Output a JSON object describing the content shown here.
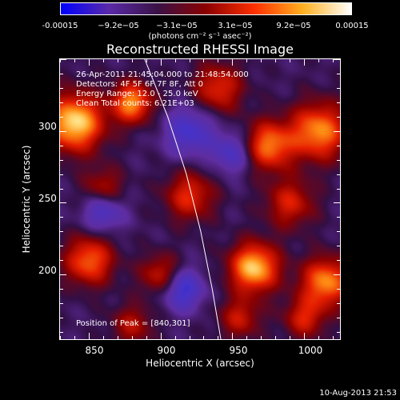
{
  "colorbar": {
    "ticks": [
      "-0.00015",
      "−9.2e−05",
      "−3.1e−05",
      "3.1e−05",
      "9.2e−05",
      "0.00015"
    ],
    "units": "(photons cm⁻² s⁻¹ asec⁻²)",
    "colors": [
      "#0000ff",
      "#5a2aa8",
      "#3a1246",
      "#8a0000",
      "#ff3000",
      "#ffb020",
      "#ffffff"
    ]
  },
  "chart_data": {
    "type": "heatmap",
    "title": "Reconstructed RHESSI Image",
    "xlabel": "Heliocentric X (arcsec)",
    "ylabel": "Heliocentric Y (arcsec)",
    "xlim": [
      830,
      1025
    ],
    "ylim": [
      155,
      350
    ],
    "xticks": [
      850,
      900,
      950,
      1000
    ],
    "yticks": [
      200,
      250,
      300
    ],
    "xtick_labels": [
      "850",
      "900",
      "950",
      "1000"
    ],
    "ytick_labels": [
      "200",
      "250",
      "300"
    ],
    "annotations": [
      "26-Apr-2011 21:45:04.000 to 21:48:54.000",
      "Detectors: 4F 5F 6F 7F 8F, Att 0",
      "Energy Range: 12.0 - 25.0 keV",
      "Clean    Total counts: 6.21E+03"
    ],
    "peak_label": "Position of Peak = [840,301]",
    "peak": [
      840,
      301
    ],
    "limb_points": [
      [
        889,
        350
      ],
      [
        905,
        310
      ],
      [
        918,
        270
      ],
      [
        928,
        230
      ],
      [
        936,
        190
      ],
      [
        942,
        155
      ]
    ],
    "blobs": [
      [
        840,
        306,
        14,
        1.0
      ],
      [
        880,
        320,
        10,
        0.8
      ],
      [
        975,
        290,
        12,
        0.75
      ],
      [
        1010,
        300,
        14,
        0.8
      ],
      [
        965,
        205,
        12,
        0.95
      ],
      [
        1015,
        195,
        12,
        0.8
      ],
      [
        850,
        210,
        12,
        0.7
      ],
      [
        920,
        255,
        12,
        0.55
      ],
      [
        900,
        200,
        10,
        0.5
      ],
      [
        990,
        250,
        12,
        0.5
      ],
      [
        940,
        330,
        12,
        0.55
      ],
      [
        860,
        260,
        10,
        0.45
      ],
      [
        955,
        170,
        10,
        0.45
      ],
      [
        1000,
        170,
        10,
        0.5
      ],
      [
        880,
        165,
        10,
        0.4
      ],
      [
        915,
        190,
        -10,
        0.6
      ],
      [
        920,
        300,
        -12,
        0.5
      ],
      [
        860,
        245,
        -10,
        0.5
      ],
      [
        950,
        285,
        -10,
        0.45
      ]
    ]
  },
  "footer": {
    "date": "10-Aug-2013 21:53"
  }
}
